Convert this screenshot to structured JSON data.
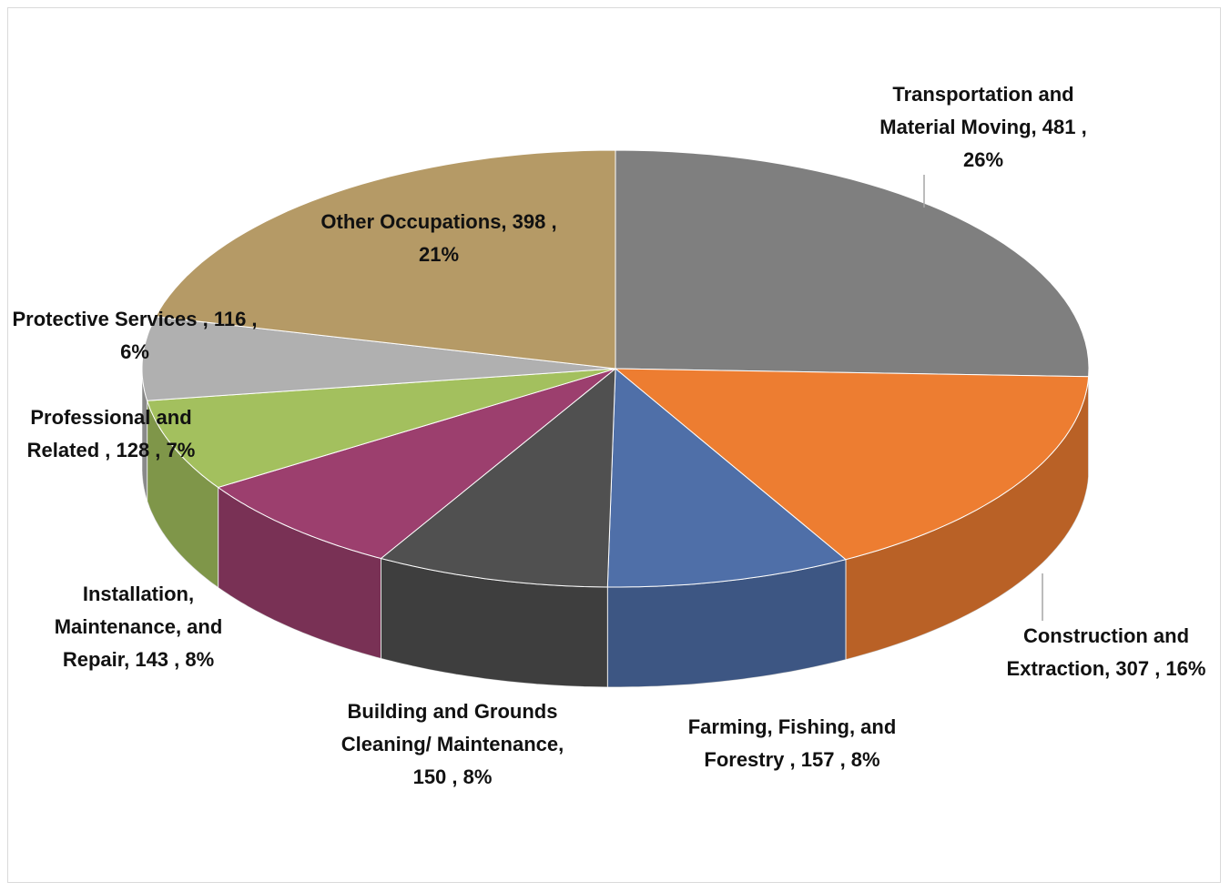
{
  "chart_data": {
    "type": "pie3d",
    "categories": [
      "Transportation and Material Moving,",
      "Construction and Extraction,",
      "Farming, Fishing, and Forestry ,",
      "Building and Grounds Cleaning/ Maintenance,",
      "Installation, Maintenance, and Repair,",
      "Professional and Related ,",
      "Protective Services ,",
      "Other Occupations,"
    ],
    "values": [
      481,
      307,
      157,
      150,
      143,
      128,
      116,
      398
    ],
    "value_labels": [
      "481 , 26%",
      "307 , 16%",
      "157 , 8%",
      "150 , 8%",
      "143 , 8%",
      "128 , 7%",
      "116 , 6%",
      "398 , 21%"
    ],
    "colors": [
      "#7f7f7f",
      "#ed7d31",
      "#4f6fa8",
      "#505050",
      "#9c3f6e",
      "#a3c05e",
      "#b0b0b0",
      "#b59a66"
    ]
  }
}
